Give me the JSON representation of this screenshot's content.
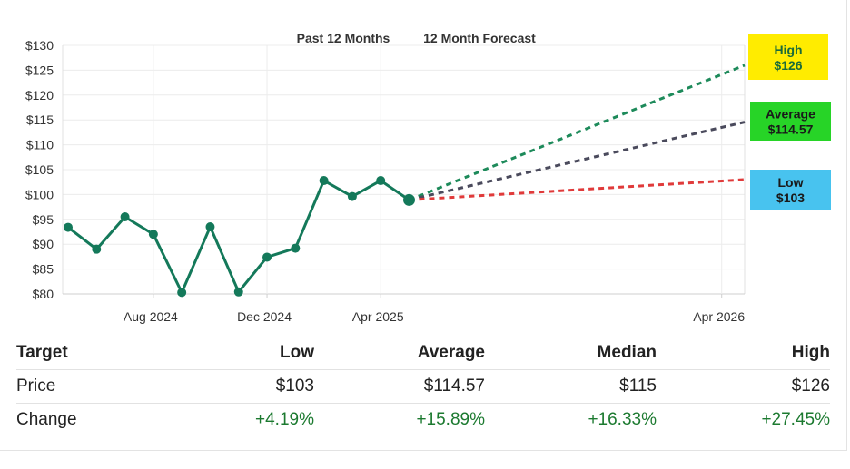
{
  "chart_data": {
    "type": "line",
    "period_labels": {
      "past": "Past 12 Months",
      "forecast": "12 Month Forecast"
    },
    "y_ticks": [
      "$130",
      "$125",
      "$120",
      "$115",
      "$110",
      "$105",
      "$100",
      "$95",
      "$90",
      "$85",
      "$80"
    ],
    "ylim": [
      80,
      130
    ],
    "x_ticks": [
      {
        "label": "Aug 2024",
        "date": "2024-08"
      },
      {
        "label": "Dec 2024",
        "date": "2024-12"
      },
      {
        "label": "Apr 2025",
        "date": "2025-04"
      },
      {
        "label": "Apr 2026",
        "date": "2026-04"
      }
    ],
    "grid": true,
    "series": [
      {
        "values": [
          {
            "date": "2024-05",
            "y": 93.4
          },
          {
            "date": "2024-06",
            "y": 89.0
          },
          {
            "date": "2024-07",
            "y": 95.5
          },
          {
            "date": "2024-08",
            "y": 92.0
          },
          {
            "date": "2024-09",
            "y": 80.3
          },
          {
            "date": "2024-10",
            "y": 93.5
          },
          {
            "date": "2024-11",
            "y": 80.4
          },
          {
            "date": "2024-12",
            "y": 87.4
          },
          {
            "date": "2025-01",
            "y": 89.2
          },
          {
            "date": "2025-02",
            "y": 102.8
          },
          {
            "date": "2025-03",
            "y": 99.6
          },
          {
            "date": "2025-04",
            "y": 102.8
          },
          {
            "date": "2025-05",
            "y": 98.9
          }
        ],
        "color": "#14795a"
      }
    ],
    "forecast": {
      "start": {
        "date": "2025-05",
        "y": 98.9
      },
      "end_date": "2026-05",
      "lines": [
        {
          "key": "high",
          "label": "High",
          "value_label": "$126",
          "y": 126,
          "line_color": "#1d8a5a",
          "badge_color": "#ffec00",
          "text_color": "#1a6a3a"
        },
        {
          "key": "average",
          "label": "Average",
          "value_label": "$114.57",
          "y": 114.57,
          "line_color": "#4a4a5c",
          "badge_color": "#27d427",
          "text_color": "#1a1a1a"
        },
        {
          "key": "low",
          "label": "Low",
          "value_label": "$103",
          "y": 103,
          "line_color": "#e03a3a",
          "badge_color": "#48c3ef",
          "text_color": "#1a1a1a"
        }
      ]
    }
  },
  "table": {
    "headers": [
      "Target",
      "Low",
      "Average",
      "Median",
      "High"
    ],
    "rows": [
      {
        "cells": [
          "Price",
          "$103",
          "$114.57",
          "$115",
          "$126"
        ],
        "positive": [
          false,
          false,
          false,
          false,
          false
        ]
      },
      {
        "cells": [
          "Change",
          "+4.19%",
          "+15.89%",
          "+16.33%",
          "+27.45%"
        ],
        "positive": [
          false,
          true,
          true,
          true,
          true
        ]
      }
    ]
  }
}
